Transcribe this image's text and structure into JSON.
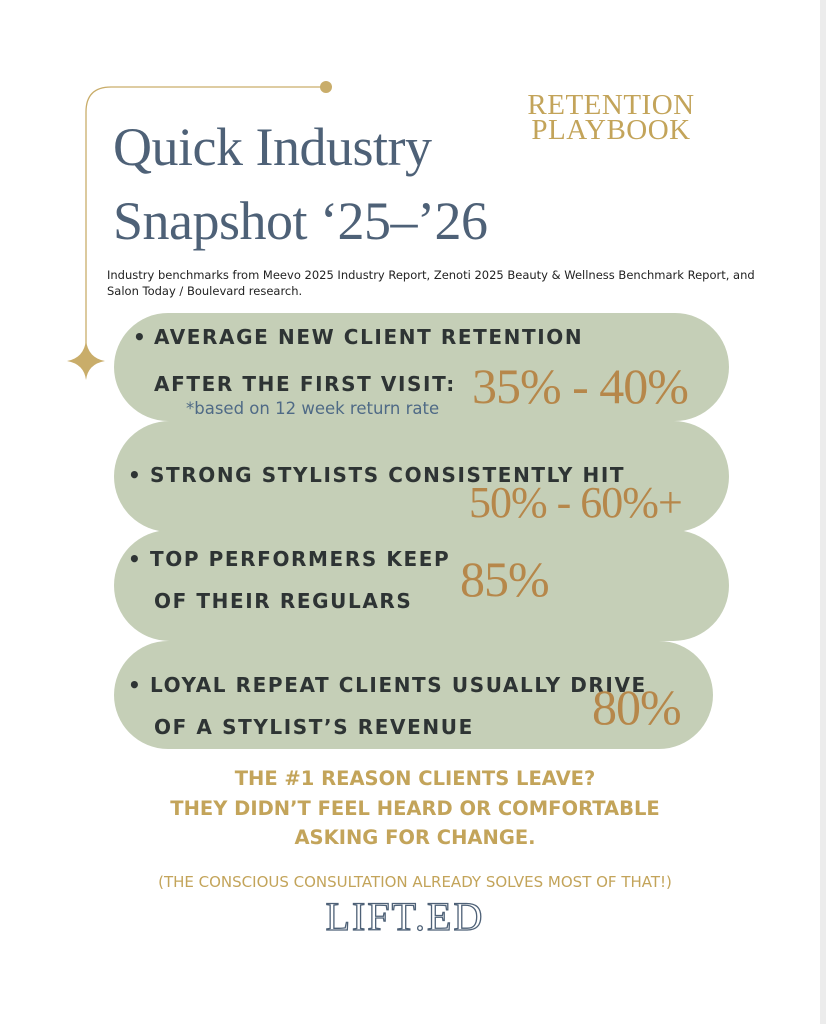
{
  "header": {
    "brand_lines": [
      "RETENTION",
      "PLAYBOOK"
    ],
    "title_lines": [
      "Quick Industry",
      "Snapshot ‘25–’26"
    ],
    "source_note_lines": [
      "Industry benchmarks from Meevo 2025 Industry Report, Zenoti 2025 Beauty & Wellness Benchmark Report, and",
      "Salon Today / Boulevard research."
    ]
  },
  "stats": [
    {
      "lines": [
        "AVERAGE NEW CLIENT RETENTION",
        "AFTER THE FIRST VISIT:"
      ],
      "note": "*based on 12 week return rate",
      "value": "35% - 40%"
    },
    {
      "lines": [
        "STRONG STYLISTS CONSISTENTLY HIT"
      ],
      "value": "50% - 60%+"
    },
    {
      "lines": [
        "TOP PERFORMERS KEEP",
        "OF THEIR REGULARS"
      ],
      "value": "85%"
    },
    {
      "lines": [
        "LOYAL REPEAT CLIENTS USUALLY DRIVE",
        "OF A STYLIST’S REVENUE"
      ],
      "value": "80%"
    }
  ],
  "closing": {
    "lines": [
      "THE #1 REASON CLIENTS LEAVE?",
      "THEY DIDN’T FEEL HEARD OR COMFORTABLE",
      "ASKING FOR CHANGE."
    ],
    "aside": "(THE CONSCIOUS CONSULTATION ALREADY SOLVES MOST OF THAT!)",
    "logo": "LIFT.ED"
  }
}
